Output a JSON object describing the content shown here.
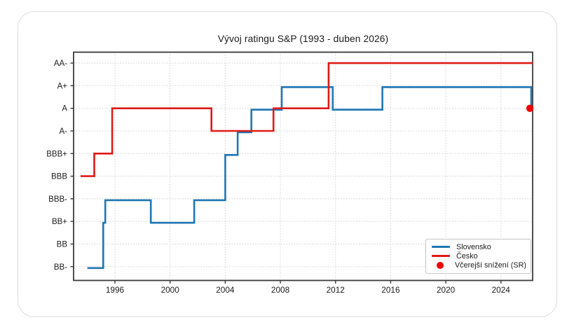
{
  "page": {
    "background": "#ffffff"
  },
  "card": {
    "border_color": "#d9dce1"
  },
  "chart_data": {
    "type": "line",
    "subtype": "step",
    "title": "Vývoj ratingu S&P (1993 - duben 2026)",
    "grid": true,
    "x_axis": {
      "ticks": [
        1996,
        2000,
        2004,
        2008,
        2012,
        2016,
        2020,
        2024
      ],
      "range": [
        1993,
        2026.3
      ]
    },
    "y_axis": {
      "categories": [
        "BB-",
        "BB",
        "BB+",
        "BBB-",
        "BBB",
        "BBB+",
        "A-",
        "A",
        "A+",
        "AA-"
      ]
    },
    "series": [
      {
        "name": "Slovensko",
        "color": "#1f77b4",
        "steps": [
          [
            1994.0,
            "BB-"
          ],
          [
            1995.15,
            "BB+"
          ],
          [
            1995.3,
            "BBB-"
          ],
          [
            1998.6,
            "BB+"
          ],
          [
            2001.75,
            "BBB-"
          ],
          [
            2004.0,
            "BBB+"
          ],
          [
            2004.9,
            "A-"
          ],
          [
            2005.9,
            "A"
          ],
          [
            2008.1,
            "A+"
          ],
          [
            2011.8,
            "A"
          ],
          [
            2015.4,
            "A+"
          ],
          [
            2026.2,
            "A"
          ]
        ]
      },
      {
        "name": "Česko",
        "color": "#e01a16",
        "steps": [
          [
            1993.5,
            "BBB"
          ],
          [
            1994.5,
            "BBB+"
          ],
          [
            1995.8,
            "A"
          ],
          [
            2003.0,
            "A-"
          ],
          [
            2007.5,
            "A"
          ],
          [
            2011.5,
            "AA-"
          ],
          [
            2026.3,
            "AA-"
          ]
        ]
      }
    ],
    "marker": {
      "label": "Včerejší snížení (SR)",
      "color": "#ee0000",
      "x": 2026.1,
      "rating": "A"
    },
    "legend": {
      "position": "lower right",
      "items": [
        {
          "label": "Slovensko",
          "swatch": "line",
          "color": "#1f77b4"
        },
        {
          "label": "Česko",
          "swatch": "line",
          "color": "#e01a16"
        },
        {
          "label": "Včerejší snížení (SR)",
          "swatch": "dot",
          "color": "#ee0000"
        }
      ]
    }
  }
}
